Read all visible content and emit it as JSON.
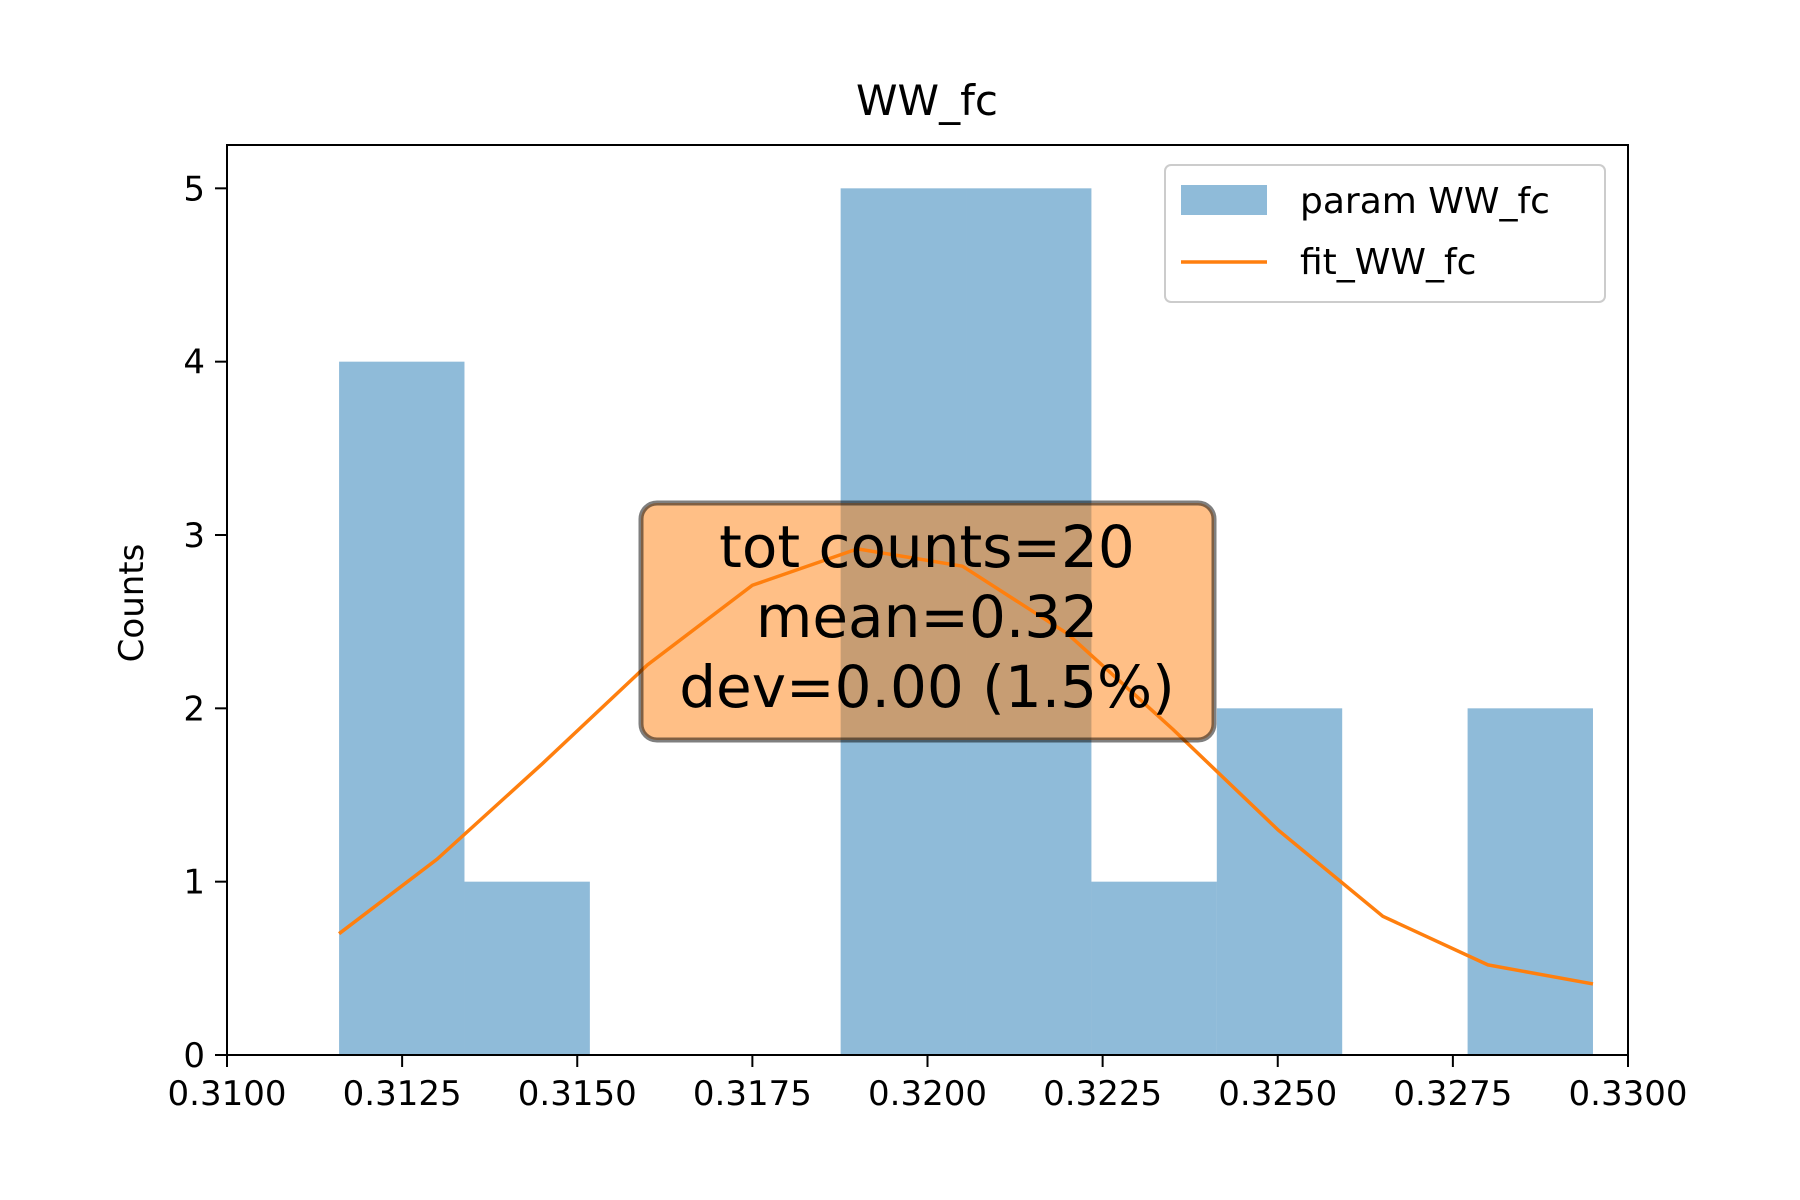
{
  "chart_data": {
    "type": "bar",
    "title": "WW_fc",
    "xlabel": "",
    "ylabel": "Counts",
    "xlim": [
      0.31,
      0.33
    ],
    "ylim": [
      0,
      5.25
    ],
    "xticks": [
      0.31,
      0.3125,
      0.315,
      0.3175,
      0.32,
      0.3225,
      0.325,
      0.3275,
      0.33
    ],
    "xtick_labels": [
      "0.3100",
      "0.3125",
      "0.3150",
      "0.3175",
      "0.3200",
      "0.3225",
      "0.3250",
      "0.3275",
      "0.3300"
    ],
    "yticks": [
      0,
      1,
      2,
      3,
      4,
      5
    ],
    "ytick_labels": [
      "0",
      "1",
      "2",
      "3",
      "4",
      "5"
    ],
    "grid": false,
    "legend_position": "top-right",
    "series": [
      {
        "name": "param WW_fc",
        "type": "histogram",
        "color": "#1f77b4",
        "opacity": 0.5,
        "bin_edges": [
          0.3116,
          0.31339,
          0.31518,
          0.31697,
          0.31876,
          0.32055,
          0.32234,
          0.32413,
          0.32592,
          0.32771,
          0.3295
        ],
        "counts": [
          4,
          1,
          0,
          0,
          5,
          5,
          1,
          2,
          0,
          2
        ]
      },
      {
        "name": "fit_WW_fc",
        "type": "line",
        "color": "#ff7f0e",
        "x": [
          0.3116,
          0.313,
          0.3145,
          0.316,
          0.3175,
          0.319,
          0.3205,
          0.322,
          0.3235,
          0.325,
          0.3265,
          0.328,
          0.3295
        ],
        "y": [
          0.7,
          1.13,
          1.68,
          2.25,
          2.71,
          2.92,
          2.82,
          2.43,
          1.88,
          1.3,
          0.8,
          0.52,
          0.41
        ]
      }
    ],
    "annotation": {
      "lines": [
        "tot counts=20",
        "mean=0.32",
        "dev=0.00 (1.5%)"
      ],
      "box_color": "#ff7f0e",
      "box_opacity": 0.5
    }
  }
}
